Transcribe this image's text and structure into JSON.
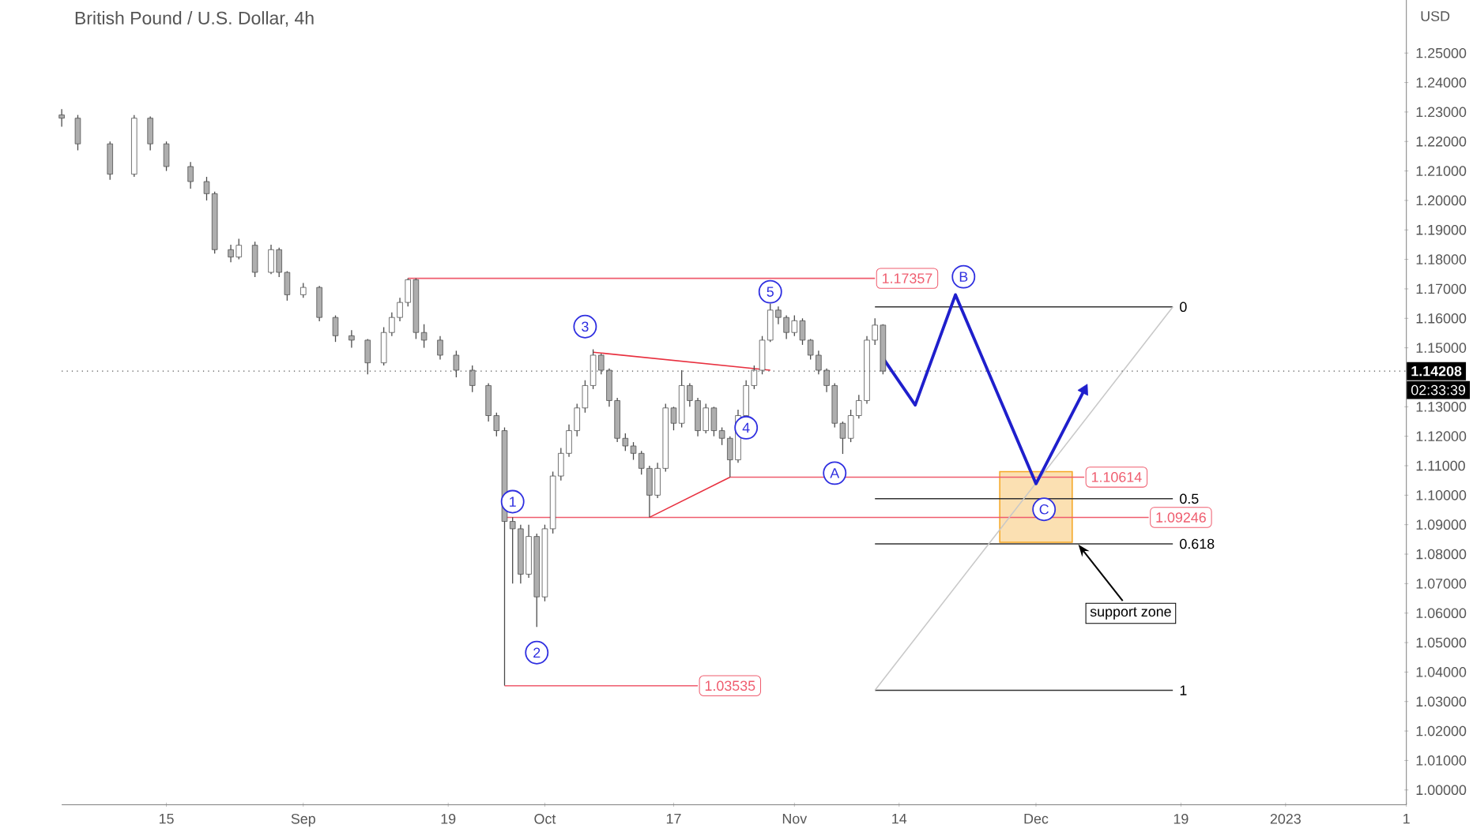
{
  "chart_data": {
    "type": "candlestick",
    "title": "British Pound / U.S. Dollar, 4h",
    "ylabel": "USD",
    "color": "#4a4a4a",
    "x": [
      "2022-08-02",
      "2022-08-04",
      "2022-08-08",
      "2022-08-11",
      "2022-08-13",
      "2022-08-15",
      "2022-08-18",
      "2022-08-20",
      "2022-08-21",
      "2022-08-23",
      "2022-08-24",
      "2022-08-26",
      "2022-08-28",
      "2022-08-29",
      "2022-08-30",
      "2022-09-01",
      "2022-09-03",
      "2022-09-05",
      "2022-09-07",
      "2022-09-09",
      "2022-09-11",
      "2022-09-12",
      "2022-09-13",
      "2022-09-14",
      "2022-09-15",
      "2022-09-16",
      "2022-09-18",
      "2022-09-20",
      "2022-09-22",
      "2022-09-24",
      "2022-09-25",
      "2022-09-26",
      "2022-09-27",
      "2022-09-28",
      "2022-09-29",
      "2022-09-30",
      "2022-10-01",
      "2022-10-02",
      "2022-10-03",
      "2022-10-04",
      "2022-10-05",
      "2022-10-06",
      "2022-10-07",
      "2022-10-08",
      "2022-10-09",
      "2022-10-10",
      "2022-10-11",
      "2022-10-12",
      "2022-10-13",
      "2022-10-14",
      "2022-10-15",
      "2022-10-16",
      "2022-10-17",
      "2022-10-18",
      "2022-10-19",
      "2022-10-20",
      "2022-10-21",
      "2022-10-22",
      "2022-10-23",
      "2022-10-24",
      "2022-10-25",
      "2022-10-26",
      "2022-10-27",
      "2022-10-28",
      "2022-10-29",
      "2022-10-30",
      "2022-10-31",
      "2022-11-01",
      "2022-11-02",
      "2022-11-03",
      "2022-11-04",
      "2022-11-05",
      "2022-11-06",
      "2022-11-07",
      "2022-11-08",
      "2022-11-09",
      "2022-11-10",
      "2022-11-11",
      "2022-11-12"
    ],
    "ohlc": [
      [
        1.229,
        1.231,
        1.225,
        1.2279
      ],
      [
        1.2279,
        1.229,
        1.217,
        1.2192
      ],
      [
        1.2192,
        1.22,
        1.207,
        1.2089
      ],
      [
        1.2089,
        1.229,
        1.208,
        1.2279
      ],
      [
        1.2279,
        1.2285,
        1.217,
        1.2192
      ],
      [
        1.2192,
        1.22,
        1.21,
        1.2115
      ],
      [
        1.2115,
        1.213,
        1.204,
        1.2064
      ],
      [
        1.2064,
        1.208,
        1.2,
        1.2023
      ],
      [
        1.2023,
        1.203,
        1.182,
        1.1833
      ],
      [
        1.1833,
        1.185,
        1.179,
        1.1808
      ],
      [
        1.1808,
        1.187,
        1.18,
        1.1848
      ],
      [
        1.1848,
        1.186,
        1.174,
        1.1756
      ],
      [
        1.1756,
        1.185,
        1.175,
        1.1833
      ],
      [
        1.1833,
        1.184,
        1.174,
        1.1756
      ],
      [
        1.1756,
        1.176,
        1.166,
        1.168
      ],
      [
        1.168,
        1.172,
        1.167,
        1.1705
      ],
      [
        1.1705,
        1.171,
        1.159,
        1.1603
      ],
      [
        1.1603,
        1.161,
        1.152,
        1.1541
      ],
      [
        1.1541,
        1.156,
        1.15,
        1.1526
      ],
      [
        1.1526,
        1.153,
        1.141,
        1.1449
      ],
      [
        1.1449,
        1.157,
        1.144,
        1.1552
      ],
      [
        1.1552,
        1.162,
        1.154,
        1.1603
      ],
      [
        1.1603,
        1.167,
        1.159,
        1.1654
      ],
      [
        1.1654,
        1.1736,
        1.164,
        1.1731
      ],
      [
        1.1731,
        1.1736,
        1.153,
        1.1552
      ],
      [
        1.1552,
        1.158,
        1.15,
        1.1526
      ],
      [
        1.1526,
        1.154,
        1.146,
        1.1475
      ],
      [
        1.1475,
        1.149,
        1.14,
        1.1424
      ],
      [
        1.1424,
        1.144,
        1.135,
        1.1372
      ],
      [
        1.1372,
        1.138,
        1.125,
        1.127
      ],
      [
        1.127,
        1.128,
        1.12,
        1.1219
      ],
      [
        1.1219,
        1.123,
        1.0354,
        1.0911
      ],
      [
        1.0911,
        1.0925,
        1.07,
        1.0886
      ],
      [
        1.0886,
        1.09,
        1.07,
        1.0732
      ],
      [
        1.0732,
        1.09,
        1.072,
        1.086
      ],
      [
        1.086,
        1.087,
        1.0553,
        1.0655
      ],
      [
        1.0655,
        1.09,
        1.064,
        1.0886
      ],
      [
        1.0886,
        1.108,
        1.087,
        1.1065
      ],
      [
        1.1065,
        1.116,
        1.105,
        1.1142
      ],
      [
        1.1142,
        1.124,
        1.113,
        1.1219
      ],
      [
        1.1219,
        1.131,
        1.12,
        1.1296
      ],
      [
        1.1296,
        1.139,
        1.128,
        1.1372
      ],
      [
        1.1372,
        1.1495,
        1.136,
        1.1475
      ],
      [
        1.1475,
        1.148,
        1.141,
        1.1424
      ],
      [
        1.1424,
        1.143,
        1.13,
        1.1321
      ],
      [
        1.1321,
        1.133,
        1.118,
        1.1193
      ],
      [
        1.1193,
        1.121,
        1.115,
        1.1167
      ],
      [
        1.1167,
        1.118,
        1.112,
        1.1142
      ],
      [
        1.1142,
        1.115,
        1.107,
        1.1091
      ],
      [
        1.1091,
        1.11,
        1.0925,
        1.1
      ],
      [
        1.1,
        1.111,
        1.099,
        1.1091
      ],
      [
        1.1091,
        1.131,
        1.108,
        1.1296
      ],
      [
        1.1296,
        1.13,
        1.122,
        1.1244
      ],
      [
        1.1244,
        1.1424,
        1.123,
        1.1372
      ],
      [
        1.1372,
        1.138,
        1.13,
        1.1321
      ],
      [
        1.1321,
        1.133,
        1.12,
        1.1219
      ],
      [
        1.1219,
        1.131,
        1.121,
        1.1296
      ],
      [
        1.1296,
        1.13,
        1.12,
        1.1219
      ],
      [
        1.1219,
        1.123,
        1.117,
        1.1193
      ],
      [
        1.1193,
        1.12,
        1.1061,
        1.112
      ],
      [
        1.112,
        1.129,
        1.111,
        1.127
      ],
      [
        1.127,
        1.139,
        1.126,
        1.1372
      ],
      [
        1.1372,
        1.144,
        1.136,
        1.1424
      ],
      [
        1.1424,
        1.154,
        1.141,
        1.1526
      ],
      [
        1.1526,
        1.165,
        1.152,
        1.1628
      ],
      [
        1.1628,
        1.164,
        1.158,
        1.1603
      ],
      [
        1.1603,
        1.161,
        1.153,
        1.1552
      ],
      [
        1.1552,
        1.161,
        1.154,
        1.1592
      ],
      [
        1.1592,
        1.16,
        1.151,
        1.1526
      ],
      [
        1.1526,
        1.153,
        1.146,
        1.1475
      ],
      [
        1.1475,
        1.149,
        1.141,
        1.1424
      ],
      [
        1.1424,
        1.143,
        1.135,
        1.1372
      ],
      [
        1.1372,
        1.138,
        1.123,
        1.1244
      ],
      [
        1.1244,
        1.125,
        1.114,
        1.1193
      ],
      [
        1.1193,
        1.129,
        1.118,
        1.127
      ],
      [
        1.127,
        1.134,
        1.126,
        1.1321
      ],
      [
        1.1321,
        1.154,
        1.131,
        1.1526
      ],
      [
        1.1526,
        1.16,
        1.151,
        1.1577
      ],
      [
        1.1577,
        1.158,
        1.141,
        1.1421
      ]
    ],
    "series": [
      {
        "type": "line",
        "color": "#ef5c6e",
        "x": [
          "2022-09-14",
          "2022-11-11"
        ],
        "values": [
          1.17357,
          1.17357
        ]
      },
      {
        "type": "line",
        "color": "#ef5c6e",
        "x": [
          "2022-10-24",
          "2022-12-07"
        ],
        "values": [
          1.10614,
          1.10614
        ]
      },
      {
        "type": "line",
        "color": "#ef5c6e",
        "x": [
          "2022-09-26",
          "2022-12-15"
        ],
        "values": [
          1.09246,
          1.09246
        ]
      },
      {
        "type": "line",
        "color": "#ef5c6e",
        "x": [
          "2022-09-26",
          "2022-10-20"
        ],
        "values": [
          1.03535,
          1.03535
        ]
      },
      {
        "type": "line",
        "color": "#e8303f",
        "x": [
          "2022-10-07",
          "2022-10-29"
        ],
        "values": [
          1.1485,
          1.1424
        ]
      },
      {
        "type": "line",
        "color": "#e8303f",
        "x": [
          "2022-10-14",
          "2022-10-24"
        ],
        "values": [
          1.0925,
          1.1061
        ]
      },
      {
        "type": "line",
        "name": "0",
        "color": "#333333",
        "x": [
          "2022-11-11",
          "2022-12-18"
        ],
        "values": [
          1.1639,
          1.1639
        ]
      },
      {
        "type": "line",
        "name": "0.5",
        "color": "#333333",
        "x": [
          "2022-11-11",
          "2022-12-18"
        ],
        "values": [
          1.0988,
          1.0988
        ]
      },
      {
        "type": "line",
        "name": "0.618",
        "color": "#333333",
        "x": [
          "2022-11-11",
          "2022-12-18"
        ],
        "values": [
          1.0835,
          1.0835
        ]
      },
      {
        "type": "line",
        "name": "1",
        "color": "#333333",
        "x": [
          "2022-11-11",
          "2022-12-18"
        ],
        "values": [
          1.0338,
          1.0338
        ]
      },
      {
        "type": "line",
        "color": "#c8c8c8",
        "x": [
          "2022-11-11",
          "2022-12-18"
        ],
        "values": [
          1.0338,
          1.1639
        ]
      },
      {
        "type": "line",
        "color": "#1f1fcc",
        "x": [
          "2022-11-12",
          "2022-11-16",
          "2022-11-21",
          "2022-12-01",
          "2022-12-07"
        ],
        "values": [
          1.1465,
          1.1306,
          1.168,
          1.1039,
          1.1357
        ]
      },
      {
        "type": "bar",
        "color": "#f5a623",
        "x": [
          "2022-12-01"
        ],
        "values": [
          0.024
        ],
        "base": [
          1.084
        ]
      }
    ],
    "ref_lines": [
      {
        "axis": "y",
        "value": 1.14208,
        "label": "1.14208",
        "color": "#555555",
        "line_style": "dotted"
      }
    ],
    "annotations": [
      {
        "text": "1",
        "x": "2022-09-27",
        "y": 1.0978
      },
      {
        "text": "2",
        "x": "2022-09-30",
        "y": 1.0466
      },
      {
        "text": "3",
        "x": "2022-10-06",
        "y": 1.1572
      },
      {
        "text": "4",
        "x": "2022-10-26",
        "y": 1.1229
      },
      {
        "text": "5",
        "x": "2022-10-29",
        "y": 1.169
      },
      {
        "text": "A",
        "x": "2022-11-06",
        "y": 1.1075
      },
      {
        "text": "B",
        "x": "2022-11-22",
        "y": 1.1741
      },
      {
        "text": "C",
        "x": "2022-12-02",
        "y": 1.0952
      },
      {
        "text": "1.17357",
        "x": "2022-11-15",
        "y": 1.17357
      },
      {
        "text": "1.10614",
        "x": "2022-12-11",
        "y": 1.10614
      },
      {
        "text": "1.09246",
        "x": "2022-12-19",
        "y": 1.09246
      },
      {
        "text": "1.03535",
        "x": "2022-10-24",
        "y": 1.03535
      },
      {
        "text": "support zone",
        "x": "2022-12-06",
        "y": 1.084
      },
      "02:33:39"
    ],
    "xlim": [
      "2022-08-02",
      "2023-01-16"
    ],
    "xticks": [
      {
        "value": "2022-08-15",
        "label": "15"
      },
      {
        "value": "2022-09-01",
        "label": "Sep"
      },
      {
        "value": "2022-09-19",
        "label": "19"
      },
      {
        "value": "2022-10-01",
        "label": "Oct"
      },
      {
        "value": "2022-10-17",
        "label": "17"
      },
      {
        "value": "2022-11-01",
        "label": "Nov"
      },
      {
        "value": "2022-11-14",
        "label": "14"
      },
      {
        "value": "2022-12-01",
        "label": "Dec"
      },
      {
        "value": "2022-12-19",
        "label": "19"
      },
      {
        "value": "2023-01-01",
        "label": "2023"
      },
      {
        "value": "2023-01-16",
        "label": "1"
      }
    ],
    "ylim": [
      0.995,
      1.268
    ],
    "yticks": [
      {
        "value": 1.0,
        "label": "1.00000"
      },
      {
        "value": 1.01,
        "label": "1.01000"
      },
      {
        "value": 1.02,
        "label": "1.02000"
      },
      {
        "value": 1.03,
        "label": "1.03000"
      },
      {
        "value": 1.04,
        "label": "1.04000"
      },
      {
        "value": 1.05,
        "label": "1.05000"
      },
      {
        "value": 1.06,
        "label": "1.06000"
      },
      {
        "value": 1.07,
        "label": "1.07000"
      },
      {
        "value": 1.08,
        "label": "1.08000"
      },
      {
        "value": 1.09,
        "label": "1.09000"
      },
      {
        "value": 1.1,
        "label": "1.10000"
      },
      {
        "value": 1.11,
        "label": "1.11000"
      },
      {
        "value": 1.12,
        "label": "1.12000"
      },
      {
        "value": 1.13,
        "label": "1.13000"
      },
      {
        "value": 1.15,
        "label": "1.15000"
      },
      {
        "value": 1.16,
        "label": "1.16000"
      },
      {
        "value": 1.17,
        "label": "1.17000"
      },
      {
        "value": 1.18,
        "label": "1.18000"
      },
      {
        "value": 1.19,
        "label": "1.19000"
      },
      {
        "value": 1.2,
        "label": "1.20000"
      },
      {
        "value": 1.21,
        "label": "1.21000"
      },
      {
        "value": 1.22,
        "label": "1.22000"
      },
      {
        "value": 1.23,
        "label": "1.23000"
      },
      {
        "value": 1.24,
        "label": "1.24000"
      },
      {
        "value": 1.25,
        "label": "1.25000"
      }
    ]
  }
}
